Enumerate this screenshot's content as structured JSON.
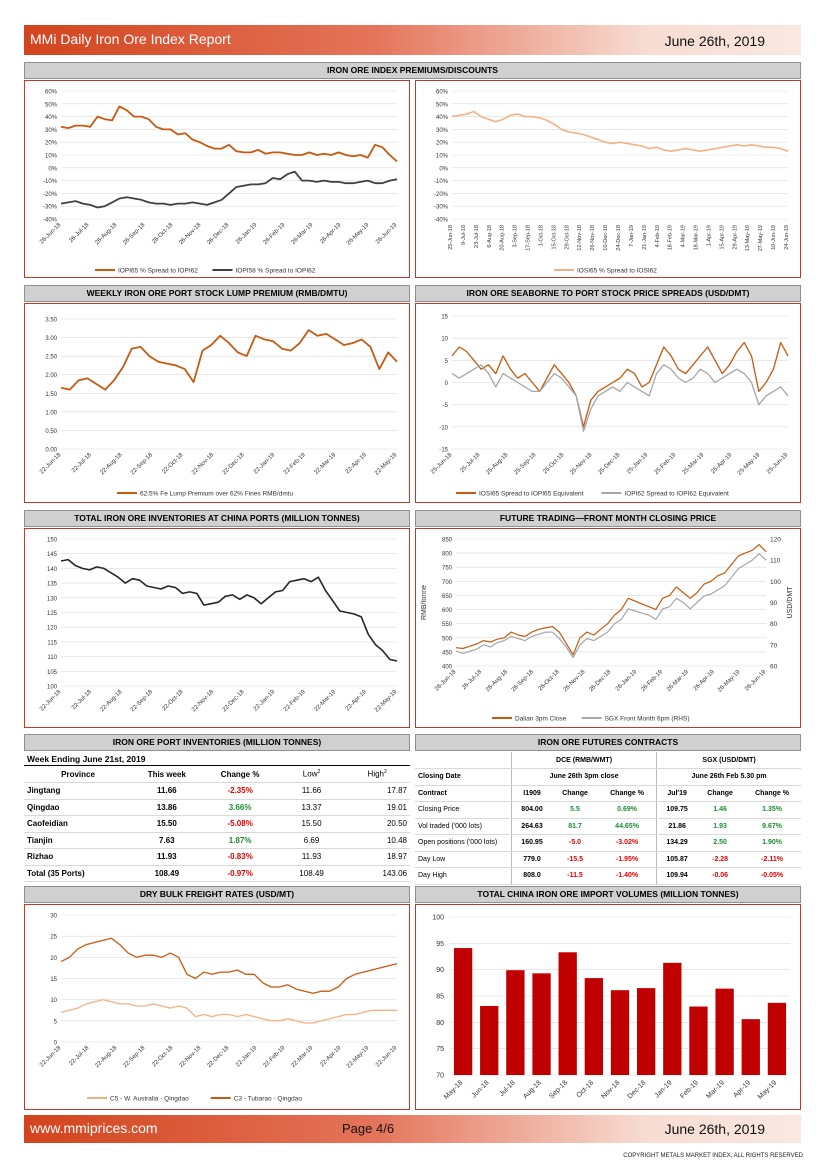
{
  "header": {
    "title": "MMi Daily Iron Ore Index Report",
    "date": "June 26th, 2019"
  },
  "footer": {
    "website": "www.mmiprices.com",
    "page": "Page 4/6",
    "date": "June 26th, 2019",
    "copyright": "COPYRIGHT METALS MARKET INDEX, ALL RIGHTS RESERVED"
  },
  "sections": {
    "premiums": "IRON ORE INDEX PREMIUMS/DISCOUNTS",
    "lump": "WEEKLY IRON ORE PORT STOCK LUMP PREMIUM (RMB/DMTU)",
    "seaborne": "IRON ORE SEABORNE TO PORT STOCK PRICE SPREADS (USD/DMT)",
    "inventories": "TOTAL IRON ORE INVENTORIES AT CHINA PORTS (MILLION TONNES)",
    "future": "FUTURE TRADING—FRONT MONTH CLOSING PRICE",
    "port_inv": "IRON ORE PORT INVENTORIES (MILLION TONNES)",
    "futures_contracts": "IRON ORE FUTURES CONTRACTS",
    "freight": "DRY BULK FREIGHT RATES (USD/MT)",
    "imports": "TOTAL CHINA IRON ORE IMPORT VOLUMES (MILLION TONNES)"
  },
  "colors": {
    "orange": "#c55a11",
    "dark": "#404040",
    "light_orange": "#f4b183",
    "grey": "#a6a6a6",
    "black": "#262626",
    "red_bar": "#c00000",
    "tan": "#f4b183"
  },
  "chart_data": [
    {
      "id": "premiums_left",
      "type": "line",
      "ylim": [
        -40,
        60
      ],
      "yticks": [
        "60%",
        "50%",
        "40%",
        "30%",
        "20%",
        "10%",
        "0%",
        "-10%",
        "-20%",
        "-30%",
        "-40%"
      ],
      "xticks": [
        "26-Jun-18",
        "26-Jul-18",
        "26-Aug-18",
        "26-Sep-18",
        "26-Oct-18",
        "26-Nov-18",
        "26-Dec-18",
        "26-Jan-19",
        "26-Feb-19",
        "26-Mar-19",
        "26-Apr-19",
        "26-May-19",
        "26-Jun-19"
      ],
      "series": [
        {
          "name": "IOPI65 % Spread to IOPI62",
          "values": [
            32,
            31,
            33,
            33,
            32,
            40,
            38,
            37,
            48,
            45,
            40,
            40,
            38,
            32,
            30,
            30,
            26,
            27,
            22,
            20,
            17,
            15,
            15,
            18,
            13,
            12,
            12,
            14,
            11,
            12,
            12,
            11,
            10,
            10,
            12,
            10,
            11,
            10,
            12,
            10,
            9,
            10,
            8,
            18,
            16,
            10,
            5
          ]
        },
        {
          "name": "IOPI58 % Spread to IOPI62",
          "values": [
            -28,
            -27,
            -26,
            -28,
            -29,
            -31,
            -30,
            -27,
            -24,
            -23,
            -24,
            -25,
            -27,
            -28,
            -28,
            -29,
            -28,
            -28,
            -27,
            -28,
            -29,
            -27,
            -25,
            -20,
            -15,
            -14,
            -13,
            -13,
            -12,
            -8,
            -9,
            -5,
            -3,
            -10,
            -10,
            -11,
            -10,
            -11,
            -11,
            -12,
            -12,
            -11,
            -10,
            -12,
            -12,
            -10,
            -9
          ]
        }
      ]
    },
    {
      "id": "premiums_right",
      "type": "line",
      "ylim": [
        -40,
        60
      ],
      "yticks": [
        "60%",
        "50%",
        "40%",
        "30%",
        "20%",
        "10%",
        "0%",
        "-10%",
        "-20%",
        "-30%",
        "-40%"
      ],
      "xticks": [
        "25-Jun-18",
        "9-Jul-18",
        "23-Jul-18",
        "6-Aug-18",
        "20-Aug-18",
        "3-Sep-18",
        "17-Sep-18",
        "1-Oct-18",
        "15-Oct-18",
        "29-Oct-18",
        "12-Nov-18",
        "26-Nov-18",
        "10-Dec-18",
        "24-Dec-18",
        "7-Jan-19",
        "21-Jan-19",
        "4-Feb-19",
        "18-Feb-19",
        "4-Mar-19",
        "18-Mar-19",
        "1-Apr-19",
        "15-Apr-19",
        "29-Apr-19",
        "13-May-19",
        "27-May-19",
        "10-Jun-19",
        "24-Jun-19"
      ],
      "series": [
        {
          "name": "IOSI65 % Spread to IOSI62",
          "values": [
            40,
            41,
            42,
            44,
            40,
            38,
            36,
            38,
            41,
            42,
            40,
            40,
            39,
            37,
            34,
            30,
            28,
            27,
            26,
            24,
            22,
            20,
            19,
            20,
            19,
            18,
            17,
            15,
            16,
            14,
            13,
            14,
            15,
            14,
            13,
            14,
            15,
            16,
            17,
            18,
            17,
            18,
            17,
            16,
            16,
            15,
            13
          ]
        }
      ]
    },
    {
      "id": "lump",
      "type": "line",
      "ylim": [
        0,
        3.5
      ],
      "yticks": [
        "3.50",
        "3.00",
        "2.50",
        "2.00",
        "1.50",
        "1.00",
        "0.50",
        "0.00"
      ],
      "xticks": [
        "22-Jun-18",
        "22-Jul-18",
        "22-Aug-18",
        "22-Sep-18",
        "22-Oct-18",
        "22-Nov-18",
        "22-Dec-18",
        "22-Jan-19",
        "22-Feb-19",
        "22-Mar-19",
        "22-Apr-19",
        "22-May-19"
      ],
      "series": [
        {
          "name": "62.5% Fe Lump Premium over 62% Fines RMB/dmtu",
          "values": [
            1.65,
            1.6,
            1.85,
            1.9,
            1.75,
            1.6,
            1.85,
            2.2,
            2.7,
            2.75,
            2.5,
            2.35,
            2.3,
            2.25,
            2.15,
            1.8,
            2.65,
            2.8,
            3.05,
            2.85,
            2.6,
            2.5,
            3.05,
            2.95,
            2.9,
            2.7,
            2.65,
            2.85,
            3.2,
            3.05,
            3.1,
            2.95,
            2.8,
            2.85,
            2.95,
            2.75,
            2.15,
            2.6,
            2.35
          ]
        }
      ]
    },
    {
      "id": "seaborne",
      "type": "line",
      "ylim": [
        -15,
        15
      ],
      "yticks": [
        "15",
        "10",
        "5",
        "0",
        "-5",
        "-10",
        "-15"
      ],
      "xticks": [
        "25-Jun-18",
        "25-Jul-18",
        "25-Aug-18",
        "25-Sep-18",
        "25-Oct-18",
        "25-Nov-18",
        "25-Dec-18",
        "25-Jan-19",
        "25-Feb-19",
        "25-Mar-19",
        "25-Apr-19",
        "25-May-19",
        "25-Jun-19"
      ],
      "series": [
        {
          "name": "IOSI65 Spread to IOPI65 Equivalent",
          "values": [
            6,
            8,
            7,
            5,
            3,
            4,
            2,
            6,
            3,
            1,
            2,
            0,
            -2,
            1,
            4,
            2,
            0,
            -3,
            -10,
            -4,
            -2,
            -1,
            0,
            1,
            3,
            2,
            -1,
            0,
            4,
            8,
            6,
            3,
            2,
            4,
            6,
            8,
            5,
            2,
            4,
            7,
            9,
            6,
            -2,
            0,
            3,
            9,
            6
          ]
        },
        {
          "name": "IOPI62 Spread to IOPI62 Equivalent",
          "values": [
            2,
            1,
            2,
            3,
            4,
            2,
            -1,
            2,
            1,
            0,
            -1,
            -2,
            -2,
            0,
            2,
            1,
            -1,
            -3,
            -11,
            -6,
            -3,
            -2,
            -1,
            -2,
            0,
            -1,
            -2,
            -3,
            2,
            4,
            3,
            1,
            0,
            1,
            3,
            2,
            0,
            1,
            2,
            3,
            2,
            0,
            -5,
            -3,
            -2,
            -1,
            -3
          ]
        }
      ]
    },
    {
      "id": "inventories",
      "type": "line",
      "ylim": [
        100,
        150
      ],
      "yticks": [
        "150",
        "145",
        "140",
        "135",
        "130",
        "125",
        "120",
        "115",
        "110",
        "105",
        "100"
      ],
      "xticks": [
        "22-Jun-18",
        "22-Jul-18",
        "22-Aug-18",
        "22-Sep-18",
        "22-Oct-18",
        "22-Nov-18",
        "22-Dec-18",
        "22-Jan-19",
        "22-Feb-19",
        "22-Mar-19",
        "22-Apr-19",
        "22-May-19"
      ],
      "series": [
        {
          "name": "Total",
          "values": [
            142.5,
            143,
            141,
            140,
            139.5,
            140.5,
            140,
            138.5,
            137,
            135,
            136.5,
            136,
            134,
            133.5,
            133,
            134,
            133.5,
            131.5,
            132,
            131.5,
            127.5,
            128,
            128.5,
            130.5,
            131,
            129.5,
            131,
            130,
            128,
            130,
            132,
            132.5,
            135.5,
            136,
            136.5,
            135.5,
            137,
            132.5,
            129,
            125.5,
            125,
            124.5,
            123.5,
            117.5,
            114,
            112,
            109,
            108.5
          ]
        }
      ]
    },
    {
      "id": "future",
      "type": "line",
      "ylim": [
        400,
        850
      ],
      "y2lim": [
        60,
        120
      ],
      "yticks": [
        "850",
        "800",
        "750",
        "700",
        "650",
        "600",
        "550",
        "500",
        "450",
        "400"
      ],
      "y2ticks": [
        "120",
        "110",
        "100",
        "90",
        "80",
        "70",
        "60"
      ],
      "ylabel": "RMB/tonne",
      "y2label": "USD/DMT",
      "xticks": [
        "26-Jun-18",
        "26-Jul-18",
        "26-Aug-18",
        "26-Sep-18",
        "26-Oct-18",
        "26-Nov-18",
        "26-Dec-18",
        "26-Jan-19",
        "26-Feb-19",
        "26-Mar-19",
        "26-Apr-19",
        "26-May-19",
        "26-Jun-19"
      ],
      "series": [
        {
          "name": "Dalian 3pm Close",
          "values": [
            465,
            462,
            470,
            478,
            490,
            485,
            495,
            500,
            520,
            510,
            505,
            520,
            530,
            535,
            540,
            520,
            480,
            440,
            500,
            520,
            510,
            530,
            550,
            580,
            600,
            640,
            630,
            620,
            610,
            600,
            640,
            650,
            680,
            660,
            640,
            660,
            690,
            700,
            720,
            730,
            760,
            790,
            800,
            810,
            830,
            805
          ]
        },
        {
          "name": "SGX Front Month 6pm (RHS)",
          "values": [
            67,
            66,
            67,
            68,
            70,
            69,
            71,
            72,
            74,
            73,
            72,
            74,
            75,
            76,
            76,
            73,
            69,
            64,
            70,
            73,
            72,
            74,
            76,
            80,
            82,
            87,
            86,
            85,
            84,
            82,
            87,
            88,
            92,
            90,
            87,
            90,
            93,
            94,
            96,
            98,
            102,
            106,
            108,
            110,
            113,
            110
          ]
        }
      ]
    },
    {
      "id": "freight",
      "type": "line",
      "ylim": [
        0,
        30
      ],
      "yticks": [
        "30",
        "25",
        "20",
        "15",
        "10",
        "5",
        "0"
      ],
      "xticks": [
        "22-Jun-18",
        "22-Jul-18",
        "22-Aug-18",
        "22-Sep-18",
        "22-Oct-18",
        "22-Nov-18",
        "22-Dec-18",
        "22-Jan-19",
        "22-Feb-19",
        "22-Mar-19",
        "22-Apr-19",
        "22-May-19",
        "22-Jun-19"
      ],
      "series": [
        {
          "name": "C5 - W. Australia - Qingdao",
          "values": [
            7,
            7.5,
            8,
            9,
            9.5,
            10,
            9.5,
            9,
            9,
            8.5,
            8.5,
            9,
            8.5,
            8,
            8.5,
            8,
            6,
            6.5,
            6,
            6.5,
            6.5,
            6,
            6.5,
            6,
            5.5,
            5,
            5,
            5.5,
            5,
            4.5,
            4.5,
            5,
            5.5,
            6,
            6.5,
            6.5,
            7,
            7.5,
            7.5,
            7.5,
            7.5
          ]
        },
        {
          "name": "C3 - Tubarao - Qingdao",
          "values": [
            19,
            20,
            22,
            23,
            23.5,
            24,
            24.5,
            23,
            21,
            20,
            20.5,
            20.5,
            20,
            21,
            20,
            16,
            15,
            16.5,
            16,
            16.5,
            16.5,
            17,
            16,
            16,
            14,
            13,
            13,
            13.5,
            12.5,
            12,
            11.5,
            12,
            12,
            13,
            15,
            16,
            16.5,
            17,
            17.5,
            18,
            18.5
          ]
        }
      ]
    },
    {
      "id": "imports",
      "type": "bar",
      "ylim": [
        70,
        100
      ],
      "yticks": [
        "100",
        "95",
        "90",
        "85",
        "80",
        "75",
        "70"
      ],
      "categories": [
        "May-18",
        "Jun-18",
        "Jul-18",
        "Aug-18",
        "Sep-18",
        "Oct-18",
        "Nov-18",
        "Dec-18",
        "Jan-19",
        "Feb-19",
        "Mar-19",
        "Apr-19",
        "May-19"
      ],
      "values": [
        94.1,
        83.1,
        89.9,
        89.3,
        93.3,
        88.4,
        86.1,
        86.5,
        91.3,
        83.0,
        86.4,
        80.6,
        83.7
      ]
    }
  ],
  "port_inventories": {
    "week": "Week Ending June 21st, 2019",
    "headers": [
      "Province",
      "This week",
      "Change %",
      "Low",
      "High"
    ],
    "rows": [
      {
        "province": "Jingtang",
        "week": "11.66",
        "change": "-2.35%",
        "neg": true,
        "low": "11.66",
        "high": "17.87"
      },
      {
        "province": "Qingdao",
        "week": "13.86",
        "change": "3.66%",
        "neg": false,
        "low": "13.37",
        "high": "19.01"
      },
      {
        "province": "Caofeidian",
        "week": "15.50",
        "change": "-5.08%",
        "neg": true,
        "low": "15.50",
        "high": "20.50"
      },
      {
        "province": "Tianjin",
        "week": "7.63",
        "change": "1.87%",
        "neg": false,
        "low": "6.69",
        "high": "10.48"
      },
      {
        "province": "Rizhao",
        "week": "11.93",
        "change": "-0.83%",
        "neg": true,
        "low": "11.93",
        "high": "18.97"
      },
      {
        "province": "Total (35 Ports)",
        "week": "108.49",
        "change": "-0.97%",
        "neg": true,
        "low": "108.49",
        "high": "143.06"
      }
    ]
  },
  "futures": {
    "dce": "DCE (RMB/WMT)",
    "sgx": "SGX (USD/DMT)",
    "closing_date": "Closing Date",
    "dce_date": "June 26th 3pm close",
    "sgx_date": "June 26th Feb 5.30 pm",
    "header": [
      "Contract",
      "I1909",
      "Change",
      "Change %",
      "Jul'19",
      "Change",
      "Change %"
    ],
    "rows": [
      [
        "Closing Price",
        "804.00",
        "5.5",
        "0.69%",
        "109.75",
        "1.46",
        "1.35%"
      ],
      [
        "Vol traded ('000 lots)",
        "264.63",
        "81.7",
        "44.65%",
        "21.86",
        "1.93",
        "9.67%"
      ],
      [
        "Open positions ('000 lots)",
        "160.95",
        "-5.0",
        "-3.02%",
        "134.29",
        "2.50",
        "1.90%"
      ],
      [
        "Day Low",
        "779.0",
        "-15.5",
        "-1.95%",
        "105.87",
        "-2.28",
        "-2.11%"
      ],
      [
        "Day High",
        "808.0",
        "-11.5",
        "-1.40%",
        "109.94",
        "-0.06",
        "-0.05%"
      ]
    ]
  }
}
